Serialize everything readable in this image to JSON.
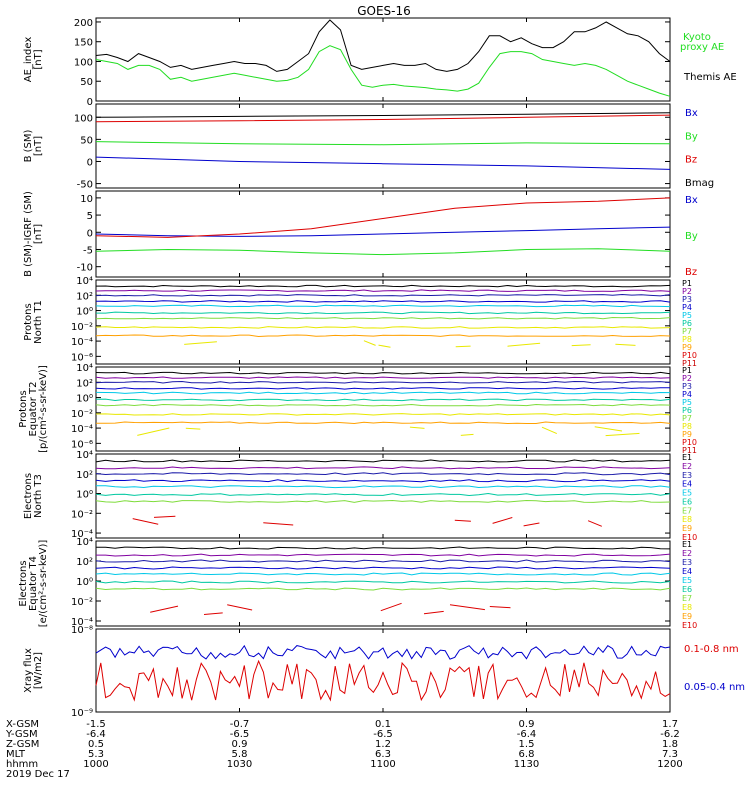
{
  "title": "GOES-16",
  "colors": {
    "black": "#000000",
    "blue": "#0000cc",
    "green": "#22dd22",
    "red": "#dd0000",
    "navy": "#1a1aa8",
    "purple": "#8000a0",
    "cyan": "#00c8e8",
    "teal": "#00c8a0",
    "lime": "#7fdc3c",
    "yellow": "#e8e800",
    "orange": "#ffa000",
    "darkred": "#c80000"
  },
  "chart_data": [
    {
      "type": "line",
      "ylabel": "AE_index [nT]",
      "ylim": [
        0,
        210
      ],
      "yticks": [
        "0",
        "50",
        "100",
        "150",
        "200"
      ],
      "series": [
        {
          "name": "Kyoto proxy AE",
          "color": "#22dd22",
          "values": [
            105,
            100,
            95,
            80,
            90,
            90,
            80,
            55,
            60,
            50,
            55,
            60,
            65,
            70,
            65,
            60,
            55,
            50,
            52,
            60,
            80,
            125,
            140,
            130,
            80,
            40,
            35,
            40,
            42,
            38,
            36,
            34,
            30,
            28,
            25,
            30,
            45,
            85,
            120,
            125,
            125,
            120,
            105,
            100,
            95,
            90,
            95,
            90,
            80,
            65,
            50,
            40,
            30,
            20,
            12
          ]
        },
        {
          "name": "Themis AE",
          "color": "#000000",
          "values": [
            115,
            118,
            110,
            100,
            120,
            110,
            100,
            85,
            90,
            80,
            85,
            90,
            95,
            100,
            95,
            95,
            90,
            75,
            80,
            100,
            120,
            175,
            205,
            180,
            90,
            80,
            85,
            90,
            95,
            90,
            90,
            95,
            80,
            75,
            80,
            95,
            125,
            165,
            165,
            150,
            160,
            145,
            135,
            135,
            150,
            175,
            175,
            185,
            200,
            185,
            170,
            165,
            150,
            120,
            100
          ]
        }
      ],
      "legend": [
        "Kyoto proxy AE",
        "Themis AE"
      ]
    },
    {
      "type": "line",
      "ylabel": "B (SM) [nT]",
      "ylim": [
        -60,
        130
      ],
      "yticks": [
        "-50",
        "0",
        "50",
        "100"
      ],
      "series": [
        {
          "name": "Bx",
          "color": "#0000cc",
          "values": [
            10,
            0,
            -5,
            -10,
            -18
          ]
        },
        {
          "name": "By",
          "color": "#22dd22",
          "values": [
            45,
            40,
            38,
            42,
            40
          ]
        },
        {
          "name": "Bz",
          "color": "#dd0000",
          "values": [
            90,
            92,
            95,
            100,
            105
          ]
        },
        {
          "name": "Bmag",
          "color": "#000000",
          "values": [
            100,
            102,
            104,
            107,
            110
          ]
        }
      ],
      "legend": [
        "Bx",
        "By",
        "Bz",
        "Bmag"
      ]
    },
    {
      "type": "line",
      "ylabel": "B (SM)-IGRF (SM) [nT]",
      "ylim": [
        -13,
        12
      ],
      "yticks": [
        "-10",
        "-5",
        "0",
        "5",
        "10"
      ],
      "series": [
        {
          "name": "Bx",
          "color": "#0000cc",
          "values": [
            -0.5,
            -1,
            -1.2,
            -1,
            -0.5,
            0,
            0.5,
            1,
            1.5
          ]
        },
        {
          "name": "By",
          "color": "#22dd22",
          "values": [
            -5.5,
            -5,
            -5.2,
            -6,
            -6.5,
            -6,
            -5,
            -4.8,
            -5.5
          ]
        },
        {
          "name": "Bz",
          "color": "#dd0000",
          "values": [
            -1,
            -1.5,
            -0.5,
            1,
            4,
            7,
            8.5,
            9,
            10
          ]
        }
      ],
      "legend": [
        "Bx",
        "By",
        "Bz"
      ]
    },
    {
      "type": "line",
      "log": true,
      "ylabel": "Protons North T1",
      "ylim_exp": [
        -7,
        4
      ],
      "yticks": [
        "10⁴",
        "10²",
        "10⁰",
        "10⁻²",
        "10⁻⁴",
        "10⁻⁶"
      ],
      "legend": [
        "P1",
        "P2",
        "P3",
        "P4",
        "P5",
        "P6",
        "P7",
        "P8",
        "P9",
        "P10",
        "P11"
      ]
    },
    {
      "type": "line",
      "log": true,
      "ylabel": "Protons Equator T2 [p/(cm²-s-sr-keV)]",
      "ylim_exp": [
        -7,
        4
      ],
      "yticks": [
        "10⁴",
        "10²",
        "10⁰",
        "10⁻²",
        "10⁻⁴",
        "10⁻⁶"
      ],
      "legend": [
        "P1",
        "P2",
        "P3",
        "P4",
        "P5",
        "P6",
        "P7",
        "P8",
        "P9",
        "P10",
        "P11"
      ]
    },
    {
      "type": "line",
      "log": true,
      "ylabel": "Electrons North T3",
      "ylim_exp": [
        -4.5,
        4
      ],
      "yticks": [
        "10⁴",
        "10²",
        "10⁰",
        "10⁻²",
        "10⁻⁴"
      ],
      "legend": [
        "E1",
        "E2",
        "E3",
        "E4",
        "E5",
        "E6",
        "E7",
        "E8",
        "E9",
        "E10"
      ]
    },
    {
      "type": "line",
      "log": true,
      "ylabel": "Electrons Equator T4 [e/(cm²-s-sr-keV)]",
      "ylim_exp": [
        -4.5,
        4
      ],
      "yticks": [
        "10⁴",
        "10²",
        "10⁰",
        "10⁻²",
        "10⁻⁴"
      ],
      "legend": [
        "E1",
        "E2",
        "E3",
        "E4",
        "E5",
        "E6",
        "E7",
        "E8",
        "E9",
        "E10"
      ]
    },
    {
      "type": "line",
      "log": true,
      "ylabel": "Xray flux [W/m2]",
      "ylim_exp": [
        -9,
        -8
      ],
      "yticks": [
        "10⁻⁸",
        "10⁻⁹"
      ],
      "series": [
        {
          "name": "0.1-0.8 nm",
          "color": "#dd0000"
        },
        {
          "name": "0.05-0.4 nm",
          "color": "#0000cc"
        }
      ],
      "legend": [
        "0.1-0.8 nm",
        "0.05-0.4 nm"
      ]
    }
  ],
  "xaxis": {
    "rows": [
      {
        "label": "X-GSM",
        "values": [
          "-1.5",
          "-0.7",
          "0.1",
          "0.9",
          "1.7"
        ]
      },
      {
        "label": "Y-GSM",
        "values": [
          "-6.4",
          "-6.5",
          "-6.5",
          "-6.4",
          "-6.2"
        ]
      },
      {
        "label": "Z-GSM",
        "values": [
          "0.5",
          "0.9",
          "1.2",
          "1.5",
          "1.8"
        ]
      },
      {
        "label": "MLT",
        "values": [
          "5.3",
          "5.8",
          "6.3",
          "6.8",
          "7.3"
        ]
      },
      {
        "label": "hhmm",
        "values": [
          "1000",
          "1030",
          "1100",
          "1130",
          "1200"
        ]
      }
    ],
    "date": "2019 Dec 17"
  }
}
